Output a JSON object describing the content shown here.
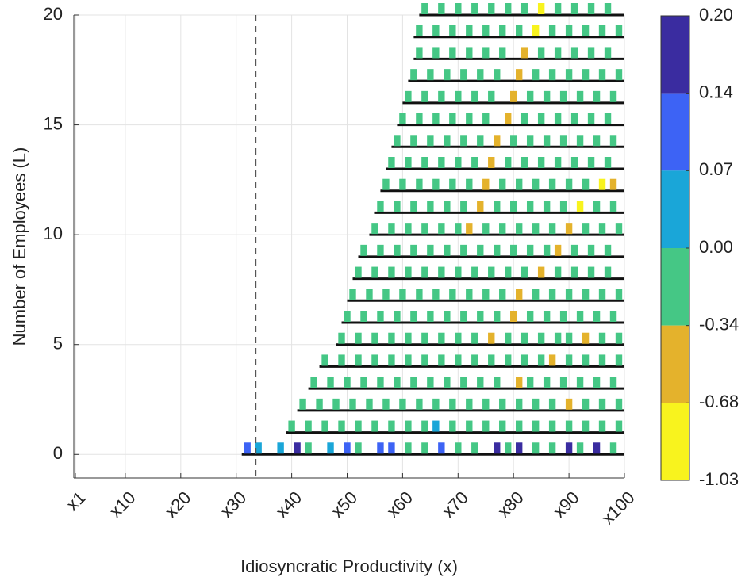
{
  "chart_data": {
    "type": "heatstrip",
    "xlabel": "Idiosyncratic Productivity (x)",
    "ylabel": "Number of Employees (L)",
    "xlim": [
      1,
      100
    ],
    "ylim": [
      -1,
      20
    ],
    "xticks": [
      {
        "value": 1,
        "label": "x1"
      },
      {
        "value": 10,
        "label": "x10"
      },
      {
        "value": 20,
        "label": "x20"
      },
      {
        "value": 30,
        "label": "x30"
      },
      {
        "value": 40,
        "label": "x40"
      },
      {
        "value": 50,
        "label": "x50"
      },
      {
        "value": 60,
        "label": "x60"
      },
      {
        "value": 70,
        "label": "x70"
      },
      {
        "value": 80,
        "label": "x80"
      },
      {
        "value": 90,
        "label": "x90"
      },
      {
        "value": 100,
        "label": "x100"
      }
    ],
    "yticks": [
      0,
      5,
      10,
      15,
      20
    ],
    "grid": true,
    "vline": 33.5,
    "colorbar": {
      "levels": [
        {
          "value": 0.2,
          "label": "0.20"
        },
        {
          "value": 0.14,
          "label": "0.14"
        },
        {
          "value": 0.07,
          "label": "0.07"
        },
        {
          "value": 0,
          "label": "0.00"
        },
        {
          "value": -0.34,
          "label": "-0.34"
        },
        {
          "value": -0.68,
          "label": "-0.68"
        },
        {
          "value": -1.03,
          "label": "-1.03"
        }
      ],
      "colors": [
        "#3a2ca0",
        "#3d63f5",
        "#1aa6d8",
        "#45c785",
        "#e4b22c",
        "#f8f31e"
      ]
    },
    "rows": [
      {
        "y": 0,
        "start": 31,
        "x": [
          32,
          34,
          38,
          41,
          43,
          47,
          50,
          52,
          56,
          58,
          61,
          64,
          67,
          70,
          73,
          77,
          79,
          81,
          84,
          87,
          90,
          92,
          95,
          98
        ],
        "values": [
          0.1,
          0.03,
          0.03,
          0.17,
          -0.1,
          0.03,
          0.1,
          -0.1,
          0.1,
          0.1,
          -0.1,
          -0.1,
          0.1,
          -0.1,
          -0.1,
          0.17,
          -0.1,
          0.17,
          -0.1,
          -0.1,
          0.17,
          -0.1,
          0.17,
          -0.1
        ]
      },
      {
        "y": 1,
        "start": 39,
        "x": [
          40,
          43,
          46,
          49,
          52,
          55,
          58,
          61,
          64,
          66,
          69,
          72,
          75,
          78,
          81,
          84,
          87,
          90,
          93,
          96,
          99
        ],
        "values": [
          -0.1,
          -0.1,
          -0.1,
          -0.1,
          -0.1,
          -0.1,
          -0.1,
          -0.1,
          -0.1,
          0.03,
          -0.1,
          -0.1,
          -0.1,
          -0.1,
          -0.1,
          -0.1,
          -0.1,
          -0.1,
          -0.1,
          -0.1,
          -0.1
        ]
      },
      {
        "y": 2,
        "start": 41,
        "x": [
          42,
          45,
          48,
          51,
          54,
          57,
          60,
          63,
          66,
          69,
          72,
          75,
          78,
          81,
          84,
          87,
          90,
          93,
          96,
          99
        ],
        "values": [
          -0.1,
          -0.1,
          -0.1,
          -0.1,
          -0.1,
          -0.1,
          -0.1,
          -0.1,
          -0.1,
          -0.1,
          -0.1,
          -0.1,
          -0.1,
          -0.1,
          -0.1,
          -0.1,
          -0.5,
          -0.1,
          -0.1,
          -0.1
        ]
      },
      {
        "y": 3,
        "start": 43,
        "x": [
          44,
          47,
          50,
          53,
          56,
          59,
          62,
          65,
          68,
          71,
          74,
          77,
          81,
          83,
          86,
          89,
          92,
          95,
          98
        ],
        "values": [
          -0.1,
          -0.1,
          -0.1,
          -0.1,
          -0.1,
          -0.1,
          -0.1,
          -0.1,
          -0.1,
          -0.1,
          -0.1,
          -0.1,
          -0.5,
          -0.1,
          -0.1,
          -0.1,
          -0.1,
          -0.1,
          -0.1
        ]
      },
      {
        "y": 4,
        "start": 45,
        "x": [
          46,
          49,
          52,
          55,
          58,
          61,
          64,
          67,
          70,
          73,
          76,
          79,
          82,
          85,
          87,
          90,
          93,
          96,
          99
        ],
        "values": [
          -0.1,
          -0.1,
          -0.1,
          -0.1,
          -0.1,
          -0.1,
          -0.1,
          -0.1,
          -0.1,
          -0.1,
          -0.1,
          -0.1,
          -0.1,
          -0.1,
          -0.5,
          -0.1,
          -0.1,
          -0.1,
          -0.1
        ]
      },
      {
        "y": 5,
        "start": 48,
        "x": [
          49,
          52,
          55,
          58,
          61,
          64,
          67,
          70,
          73,
          76,
          79,
          82,
          85,
          88,
          90,
          93,
          96,
          99
        ],
        "values": [
          -0.1,
          -0.1,
          -0.1,
          -0.1,
          -0.1,
          -0.1,
          -0.1,
          -0.1,
          -0.1,
          -0.5,
          -0.1,
          -0.1,
          -0.1,
          -0.1,
          -0.1,
          -0.5,
          -0.1,
          -0.1
        ]
      },
      {
        "y": 6,
        "start": 49,
        "x": [
          50,
          53,
          56,
          59,
          62,
          65,
          68,
          71,
          74,
          77,
          80,
          83,
          86,
          89,
          92,
          95,
          98
        ],
        "values": [
          -0.1,
          -0.1,
          -0.1,
          -0.1,
          -0.1,
          -0.1,
          -0.1,
          -0.1,
          -0.1,
          -0.1,
          -0.5,
          -0.1,
          -0.1,
          -0.1,
          -0.1,
          -0.1,
          -0.1
        ]
      },
      {
        "y": 7,
        "start": 50,
        "x": [
          51,
          54,
          57,
          60,
          63,
          66,
          69,
          72,
          75,
          78,
          81,
          84,
          87,
          90,
          93,
          96,
          99
        ],
        "values": [
          -0.1,
          -0.1,
          -0.1,
          -0.1,
          -0.1,
          -0.1,
          -0.1,
          -0.1,
          -0.1,
          -0.1,
          -0.5,
          -0.1,
          -0.1,
          -0.1,
          -0.1,
          -0.1,
          -0.1
        ]
      },
      {
        "y": 8,
        "start": 51,
        "x": [
          52,
          55,
          58,
          61,
          64,
          67,
          70,
          73,
          76,
          79,
          82,
          85,
          88,
          91,
          94,
          97
        ],
        "values": [
          -0.1,
          -0.1,
          -0.1,
          -0.1,
          -0.1,
          -0.1,
          -0.1,
          -0.1,
          -0.1,
          -0.1,
          -0.1,
          -0.5,
          -0.1,
          -0.1,
          -0.1,
          -0.1
        ]
      },
      {
        "y": 9,
        "start": 52,
        "x": [
          53,
          56,
          59,
          62,
          65,
          68,
          71,
          74,
          77,
          80,
          83,
          86,
          88,
          91,
          94,
          97
        ],
        "values": [
          -0.1,
          -0.1,
          -0.1,
          -0.1,
          -0.1,
          -0.1,
          -0.1,
          -0.1,
          -0.1,
          -0.1,
          -0.1,
          -0.1,
          -0.5,
          -0.1,
          -0.1,
          -0.1
        ]
      },
      {
        "y": 10,
        "start": 54,
        "x": [
          55,
          58,
          61,
          64,
          67,
          70,
          72,
          75,
          78,
          81,
          84,
          87,
          90,
          93,
          96,
          99
        ],
        "values": [
          -0.1,
          -0.1,
          -0.1,
          -0.1,
          -0.1,
          -0.1,
          -0.5,
          -0.1,
          -0.1,
          -0.1,
          -0.1,
          -0.1,
          -0.5,
          -0.1,
          -0.1,
          -0.1
        ]
      },
      {
        "y": 11,
        "start": 55,
        "x": [
          56,
          59,
          62,
          65,
          68,
          71,
          74,
          77,
          80,
          83,
          86,
          89,
          92,
          95,
          98
        ],
        "values": [
          -0.1,
          -0.1,
          -0.1,
          -0.1,
          -0.1,
          -0.1,
          -0.5,
          -0.1,
          -0.1,
          -0.1,
          -0.1,
          -0.1,
          -0.9,
          -0.1,
          -0.1
        ]
      },
      {
        "y": 12,
        "start": 56,
        "x": [
          57,
          60,
          63,
          66,
          69,
          72,
          75,
          78,
          81,
          84,
          87,
          90,
          93,
          96,
          98
        ],
        "values": [
          -0.1,
          -0.1,
          -0.1,
          -0.1,
          -0.1,
          -0.1,
          -0.5,
          -0.1,
          -0.1,
          -0.1,
          -0.1,
          -0.1,
          -0.1,
          -0.9,
          -0.5
        ]
      },
      {
        "y": 13,
        "start": 57,
        "x": [
          58,
          61,
          64,
          67,
          70,
          73,
          76,
          79,
          82,
          85,
          88,
          91,
          94,
          97
        ],
        "values": [
          -0.1,
          -0.1,
          -0.1,
          -0.1,
          -0.1,
          -0.1,
          -0.5,
          -0.1,
          -0.1,
          -0.1,
          -0.1,
          -0.1,
          -0.1,
          -0.1
        ]
      },
      {
        "y": 14,
        "start": 58,
        "x": [
          59,
          62,
          65,
          68,
          71,
          74,
          77,
          80,
          83,
          86,
          89,
          92,
          95,
          98
        ],
        "values": [
          -0.1,
          -0.1,
          -0.1,
          -0.1,
          -0.1,
          -0.1,
          -0.5,
          -0.1,
          -0.1,
          -0.1,
          -0.1,
          -0.1,
          -0.1,
          -0.1
        ]
      },
      {
        "y": 15,
        "start": 59,
        "x": [
          60,
          63,
          66,
          69,
          72,
          75,
          79,
          82,
          85,
          88,
          91,
          94,
          97
        ],
        "values": [
          -0.1,
          -0.1,
          -0.1,
          -0.1,
          -0.1,
          -0.1,
          -0.5,
          -0.1,
          -0.1,
          -0.1,
          -0.1,
          -0.1,
          -0.1
        ]
      },
      {
        "y": 16,
        "start": 60,
        "x": [
          61,
          64,
          67,
          70,
          73,
          76,
          80,
          83,
          86,
          89,
          92,
          95,
          98
        ],
        "values": [
          -0.1,
          -0.1,
          -0.1,
          -0.1,
          -0.1,
          -0.1,
          -0.5,
          -0.1,
          -0.1,
          -0.1,
          -0.1,
          -0.1,
          -0.1
        ]
      },
      {
        "y": 17,
        "start": 61,
        "x": [
          62,
          65,
          68,
          71,
          74,
          77,
          81,
          84,
          87,
          90,
          93,
          96,
          99
        ],
        "values": [
          -0.1,
          -0.1,
          -0.1,
          -0.1,
          -0.1,
          -0.1,
          -0.5,
          -0.1,
          -0.1,
          -0.1,
          -0.1,
          -0.1,
          -0.1
        ]
      },
      {
        "y": 18,
        "start": 62,
        "x": [
          63,
          66,
          69,
          72,
          75,
          78,
          82,
          85,
          88,
          91,
          94,
          97
        ],
        "values": [
          -0.1,
          -0.1,
          -0.1,
          -0.1,
          -0.1,
          -0.1,
          -0.5,
          -0.1,
          -0.1,
          -0.1,
          -0.1,
          -0.1
        ]
      },
      {
        "y": 19,
        "start": 62,
        "x": [
          63,
          66,
          69,
          72,
          75,
          78,
          81,
          84,
          87,
          90,
          93,
          96,
          99
        ],
        "values": [
          -0.1,
          -0.1,
          -0.1,
          -0.1,
          -0.1,
          -0.1,
          -0.1,
          -0.9,
          -0.1,
          -0.1,
          -0.1,
          -0.1,
          -0.1
        ]
      },
      {
        "y": 20,
        "start": 63,
        "x": [
          64,
          67,
          70,
          73,
          76,
          79,
          82,
          85,
          88,
          91,
          94,
          97
        ],
        "values": [
          -0.1,
          -0.1,
          -0.1,
          -0.1,
          -0.1,
          -0.1,
          -0.1,
          -0.9,
          -0.1,
          -0.1,
          -0.1,
          -0.1
        ]
      }
    ]
  }
}
